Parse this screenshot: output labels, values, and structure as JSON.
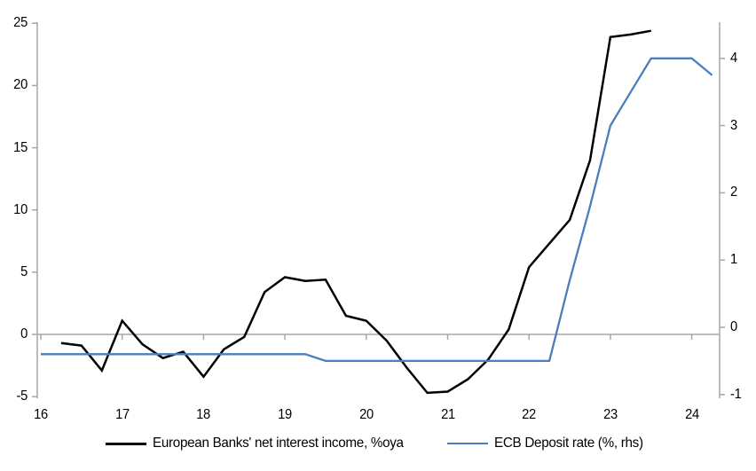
{
  "chart_data": {
    "type": "line",
    "title": "",
    "grid": "off",
    "legend_position": "bottom",
    "x_axis": {
      "tick_values": [
        16,
        17,
        18,
        19,
        20,
        21,
        22,
        23,
        24
      ],
      "tick_labels": [
        "16",
        "17",
        "18",
        "19",
        "20",
        "21",
        "22",
        "23",
        "24"
      ],
      "range": [
        16,
        24.45
      ]
    },
    "left_axis": {
      "tick_values": [
        -5,
        0,
        5,
        10,
        15,
        20,
        25
      ],
      "tick_labels": [
        "-5",
        "0",
        "5",
        "10",
        "15",
        "20",
        "25"
      ],
      "range": [
        -5,
        25
      ]
    },
    "right_axis": {
      "tick_values": [
        -1,
        0,
        1,
        2,
        3,
        4
      ],
      "tick_labels": [
        "-1",
        "0",
        "1",
        "2",
        "3",
        "4"
      ],
      "range": [
        -1.05,
        4.55
      ]
    },
    "series": [
      {
        "name": "European Banks' net interest income, %oya",
        "axis": "left",
        "color": "#000000",
        "width": 2.5,
        "x": [
          16.25,
          16.5,
          16.75,
          17,
          17.25,
          17.5,
          17.75,
          18,
          18.25,
          18.5,
          18.75,
          19,
          19.25,
          19.5,
          19.75,
          20,
          20.25,
          20.5,
          20.75,
          21,
          21.25,
          21.5,
          21.75,
          22,
          22.25,
          22.5,
          22.75,
          23,
          23.25,
          23.5
        ],
        "values": [
          -0.7,
          -0.9,
          -2.9,
          1.1,
          -0.8,
          -1.9,
          -1.4,
          -3.4,
          -1.2,
          -0.2,
          3.4,
          4.6,
          4.3,
          4.4,
          1.5,
          1.1,
          -0.5,
          -2.7,
          -4.7,
          -4.6,
          -3.6,
          -2.0,
          0.4,
          5.4,
          7.3,
          9.2,
          14.0,
          23.9,
          24.1,
          24.4
        ]
      },
      {
        "name": "ECB Deposit rate (%, rhs)",
        "axis": "right",
        "color": "#4a7ebc",
        "width": 2.3,
        "x": [
          16,
          16.25,
          16.5,
          16.75,
          17,
          17.25,
          17.5,
          17.75,
          18,
          18.25,
          18.5,
          18.75,
          19,
          19.25,
          19.5,
          19.75,
          20,
          20.25,
          20.5,
          20.75,
          21,
          21.25,
          21.5,
          21.75,
          22,
          22.25,
          22.5,
          22.75,
          23,
          23.25,
          23.5,
          23.75,
          24,
          24.25
        ],
        "values": [
          -0.4,
          -0.4,
          -0.4,
          -0.4,
          -0.4,
          -0.4,
          -0.4,
          -0.4,
          -0.4,
          -0.4,
          -0.4,
          -0.4,
          -0.4,
          -0.4,
          -0.5,
          -0.5,
          -0.5,
          -0.5,
          -0.5,
          -0.5,
          -0.5,
          -0.5,
          -0.5,
          -0.5,
          -0.5,
          -0.5,
          0.7,
          1.8,
          3.0,
          3.5,
          4.0,
          4.0,
          4.0,
          3.75
        ]
      }
    ],
    "colors": {
      "axis_line": "#a6a6a6",
      "text": "#000000",
      "background": "#ffffff"
    }
  },
  "legend": {
    "series1_label": "European Banks' net interest income, %oya",
    "series2_label": "ECB Deposit rate (%, rhs)"
  }
}
